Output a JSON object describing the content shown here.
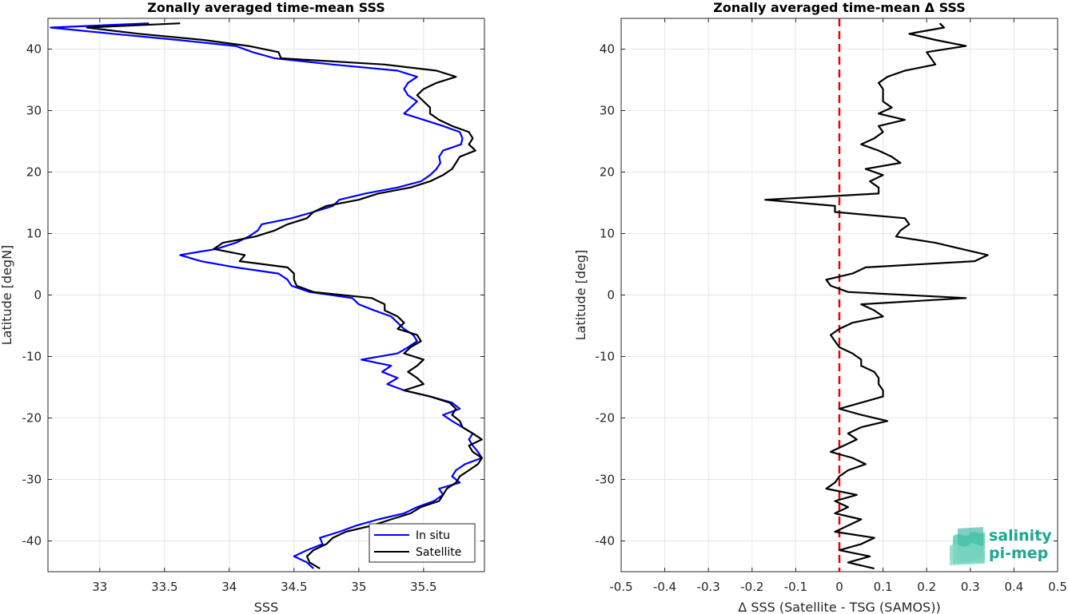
{
  "chart_data": [
    {
      "type": "line",
      "title": "Zonally averaged time-mean SSS",
      "xlabel": "SSS",
      "ylabel": "Latitude [degN]",
      "xlim": [
        32.6,
        35.97
      ],
      "ylim": [
        -45,
        45
      ],
      "xticks": [
        33,
        33.5,
        34,
        34.5,
        35,
        35.5
      ],
      "yticks": [
        -40,
        -30,
        -20,
        -10,
        0,
        10,
        20,
        30,
        40
      ],
      "grid": true,
      "legend": "bottom-right",
      "series": [
        {
          "name": "In situ",
          "color": "#0000ff",
          "lat": [
            44.2,
            43.5,
            42.5,
            41.5,
            40.5,
            39.5,
            38.5,
            37.5,
            36.5,
            35.5,
            34.5,
            33.5,
            32.5,
            31.5,
            30.5,
            29.5,
            28.5,
            27.5,
            26.5,
            25.5,
            24.5,
            23.5,
            22.5,
            21.5,
            20.5,
            19.5,
            18.5,
            17.5,
            16.5,
            15.5,
            14.5,
            13.5,
            12.5,
            11.5,
            10.5,
            9.5,
            8.5,
            7.5,
            6.5,
            5.5,
            4.5,
            3.5,
            2.5,
            1.5,
            0.5,
            -0.5,
            -1.5,
            -2.5,
            -3.5,
            -4.5,
            -5.5,
            -6.5,
            -7.5,
            -8.5,
            -9.5,
            -10.5,
            -11.5,
            -12.5,
            -13.5,
            -14.5,
            -15.5,
            -16.5,
            -17.5,
            -18.5,
            -19.5,
            -20.5,
            -21.5,
            -22.5,
            -23.5,
            -24.5,
            -25.5,
            -26.5,
            -27.5,
            -28.5,
            -29.5,
            -30.5,
            -31.5,
            -32.5,
            -33.5,
            -34.5,
            -35.5,
            -36.5,
            -37.5,
            -38.5,
            -39.5,
            -40.5,
            -41.5,
            -42.5,
            -43.5,
            -44.5
          ],
          "sss": [
            33.38,
            32.62,
            33.1,
            33.6,
            34.05,
            34.18,
            34.35,
            34.8,
            35.3,
            35.45,
            35.38,
            35.35,
            35.38,
            35.45,
            35.4,
            35.35,
            35.5,
            35.65,
            35.78,
            35.8,
            35.79,
            35.65,
            35.62,
            35.63,
            35.6,
            35.55,
            35.48,
            35.3,
            35.05,
            34.85,
            34.8,
            34.65,
            34.48,
            34.25,
            34.22,
            34.15,
            34.05,
            33.9,
            33.62,
            33.78,
            34.05,
            34.38,
            34.45,
            34.48,
            34.62,
            34.95,
            35.0,
            35.12,
            35.25,
            35.3,
            35.35,
            35.42,
            35.45,
            35.38,
            35.3,
            35.02,
            35.25,
            35.18,
            35.3,
            35.22,
            35.35,
            35.55,
            35.72,
            35.78,
            35.65,
            35.72,
            35.8,
            35.88,
            35.85,
            35.88,
            35.92,
            35.95,
            35.82,
            35.75,
            35.72,
            35.78,
            35.62,
            35.65,
            35.58,
            35.45,
            35.35,
            35.15,
            34.98,
            34.85,
            34.7,
            34.72,
            34.6,
            34.5,
            34.6,
            34.65
          ]
        },
        {
          "name": "Satellite",
          "color": "#000000",
          "lat": [
            44.2,
            43.5,
            42.5,
            41.5,
            40.5,
            39.5,
            38.5,
            37.5,
            36.5,
            35.5,
            34.5,
            33.5,
            32.5,
            31.5,
            30.5,
            29.5,
            28.5,
            27.5,
            26.5,
            25.5,
            24.5,
            23.5,
            22.5,
            21.5,
            20.5,
            19.5,
            18.5,
            17.5,
            16.5,
            15.5,
            14.5,
            13.5,
            12.5,
            11.5,
            10.5,
            9.5,
            8.5,
            7.5,
            6.5,
            5.5,
            4.5,
            3.5,
            2.5,
            1.5,
            0.5,
            -0.5,
            -1.5,
            -2.5,
            -3.5,
            -4.5,
            -5.5,
            -6.5,
            -7.5,
            -8.5,
            -9.5,
            -10.5,
            -11.5,
            -12.5,
            -13.5,
            -14.5,
            -15.5,
            -16.5,
            -17.5,
            -18.5,
            -19.5,
            -20.5,
            -21.5,
            -22.5,
            -23.5,
            -24.5,
            -25.5,
            -26.5,
            -27.5,
            -28.5,
            -29.5,
            -30.5,
            -31.5,
            -32.5,
            -33.5,
            -34.5,
            -35.5,
            -36.5,
            -37.5,
            -38.5,
            -39.5,
            -40.5,
            -41.5,
            -42.5,
            -43.5,
            -44.5
          ],
          "sss": [
            33.62,
            32.9,
            33.3,
            33.8,
            34.15,
            34.38,
            34.4,
            35.2,
            35.6,
            35.75,
            35.6,
            35.5,
            35.45,
            35.5,
            35.55,
            35.55,
            35.62,
            35.72,
            35.85,
            35.88,
            35.85,
            35.9,
            35.78,
            35.75,
            35.72,
            35.65,
            35.55,
            35.4,
            35.15,
            35.0,
            34.75,
            34.65,
            34.6,
            34.45,
            34.35,
            34.2,
            33.95,
            33.88,
            34.12,
            34.08,
            34.45,
            34.5,
            34.5,
            34.52,
            34.65,
            35.1,
            35.2,
            35.2,
            35.3,
            35.35,
            35.3,
            35.45,
            35.48,
            35.4,
            35.35,
            35.5,
            35.45,
            35.38,
            35.45,
            35.5,
            35.35,
            35.55,
            35.7,
            35.75,
            35.72,
            35.78,
            35.8,
            35.88,
            35.95,
            35.85,
            35.88,
            35.95,
            35.92,
            35.85,
            35.78,
            35.75,
            35.68,
            35.65,
            35.62,
            35.48,
            35.4,
            35.25,
            35.1,
            34.9,
            34.8,
            34.75,
            34.65,
            34.6,
            34.62,
            34.7
          ]
        }
      ]
    },
    {
      "type": "line",
      "title": "Zonally averaged time-mean Δ SSS",
      "xlabel": "Δ SSS (Satellite - TSG (SAMOS))",
      "ylabel": "Latitude [deg]",
      "xlim": [
        -0.5,
        0.5
      ],
      "ylim": [
        -45,
        45
      ],
      "xticks": [
        -0.5,
        -0.4,
        -0.3,
        -0.2,
        -0.1,
        0,
        0.1,
        0.2,
        0.3,
        0.4,
        0.5
      ],
      "yticks": [
        -40,
        -30,
        -20,
        -10,
        0,
        10,
        20,
        30,
        40
      ],
      "grid": true,
      "reference_line": {
        "x": 0,
        "color": "#ee0000",
        "style": "dashed"
      },
      "series": [
        {
          "name": "",
          "color": "#000000",
          "lat": [
            44.2,
            43.5,
            42.5,
            41.5,
            40.5,
            39.5,
            38.5,
            37.5,
            36.5,
            35.5,
            34.5,
            33.5,
            32.5,
            31.5,
            30.5,
            29.5,
            28.5,
            27.5,
            26.5,
            25.5,
            24.5,
            23.5,
            22.5,
            21.5,
            20.5,
            19.5,
            18.5,
            17.5,
            16.5,
            15.5,
            14.5,
            13.5,
            12.5,
            11.5,
            10.5,
            9.5,
            8.5,
            7.5,
            6.5,
            5.5,
            4.5,
            3.5,
            2.5,
            1.5,
            0.5,
            -0.5,
            -1.5,
            -2.5,
            -3.5,
            -4.5,
            -5.5,
            -6.5,
            -7.5,
            -8.5,
            -9.5,
            -10.5,
            -11.5,
            -12.5,
            -13.5,
            -14.5,
            -15.5,
            -16.5,
            -17.5,
            -18.5,
            -19.5,
            -20.5,
            -21.5,
            -22.5,
            -23.5,
            -24.5,
            -25.5,
            -26.5,
            -27.5,
            -28.5,
            -29.5,
            -30.5,
            -31.5,
            -32.5,
            -33.5,
            -34.5,
            -35.5,
            -36.5,
            -37.5,
            -38.5,
            -39.5,
            -40.5,
            -41.5,
            -42.5,
            -43.5,
            -44.5
          ],
          "dsss": [
            0.23,
            0.24,
            0.16,
            0.22,
            0.29,
            0.2,
            0.21,
            0.22,
            0.15,
            0.11,
            0.09,
            0.1,
            0.1,
            0.1,
            0.12,
            0.09,
            0.15,
            0.09,
            0.1,
            0.08,
            0.05,
            0.09,
            0.12,
            0.14,
            0.06,
            0.1,
            0.07,
            0.09,
            0.09,
            -0.17,
            -0.01,
            -0.01,
            0.15,
            0.16,
            0.14,
            0.13,
            0.22,
            0.28,
            0.34,
            0.31,
            0.06,
            0.03,
            -0.03,
            -0.02,
            0.02,
            0.29,
            0.05,
            0.08,
            0.1,
            0.03,
            0.0,
            -0.02,
            -0.01,
            0.0,
            0.03,
            0.05,
            0.05,
            0.08,
            0.09,
            0.09,
            0.1,
            0.1,
            0.05,
            0.0,
            0.05,
            0.11,
            0.05,
            0.02,
            0.04,
            0.01,
            -0.02,
            0.03,
            0.06,
            0.02,
            0.0,
            -0.01,
            -0.03,
            0.04,
            -0.01,
            0.02,
            -0.01,
            0.05,
            0.02,
            -0.01,
            0.08,
            0.05,
            0.0,
            0.07,
            0.02,
            0.08
          ]
        }
      ]
    }
  ],
  "logo": {
    "line1": "salinity",
    "line2": "pi-mep"
  }
}
